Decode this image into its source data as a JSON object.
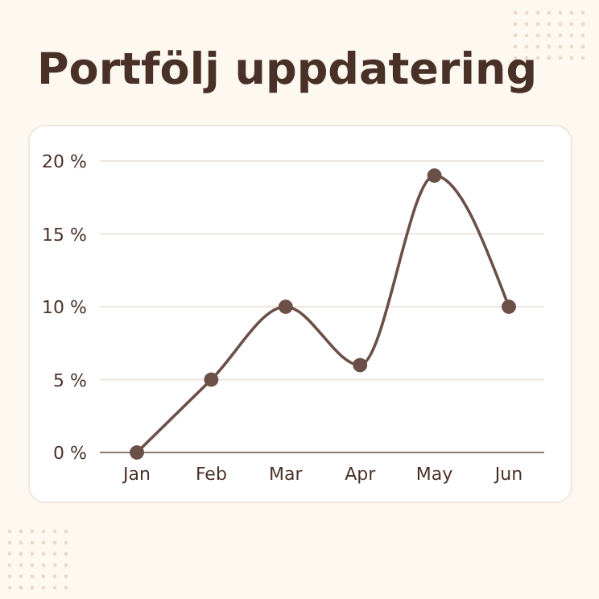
{
  "chart_data": {
    "type": "line",
    "title": "Portfölj uppdatering",
    "categories": [
      "Jan",
      "Feb",
      "Mar",
      "Apr",
      "May",
      "Jun"
    ],
    "series": [
      {
        "color": "#6b5048",
        "values": [
          0,
          5,
          10,
          6,
          19,
          10
        ]
      }
    ],
    "ylim": [
      0,
      20
    ],
    "yticks": [
      {
        "value": 0,
        "label": "0 %"
      },
      {
        "value": 5,
        "label": "5 %"
      },
      {
        "value": 10,
        "label": "10 %"
      },
      {
        "value": 15,
        "label": "15 %"
      },
      {
        "value": 20,
        "label": "20 %"
      }
    ],
    "grid": "y",
    "marker": "circle",
    "line_style": "solid"
  }
}
